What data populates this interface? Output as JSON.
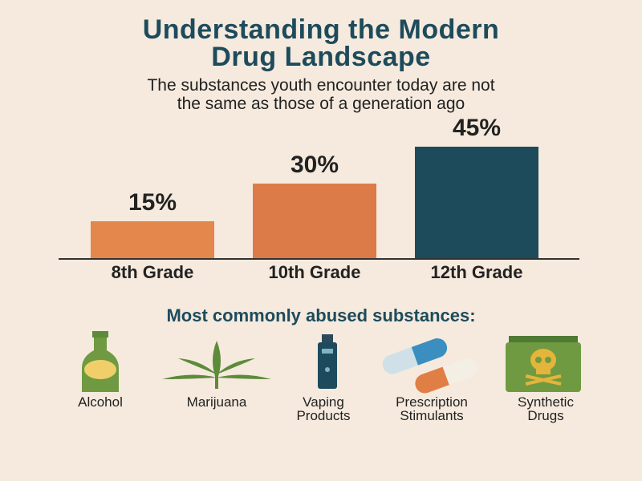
{
  "chart_data": {
    "type": "bar",
    "title": "Understanding the Modern Drug Landscape",
    "subtitle": "The substances youth encounter today are not the same as those of a generation ago",
    "categories": [
      "8th Grade",
      "10th Grade",
      "12th Grade"
    ],
    "values": [
      15,
      30,
      45
    ],
    "value_labels": [
      "15%",
      "30%",
      "45%"
    ],
    "colors": [
      "#e3874d",
      "#dc7b47",
      "#1d4b5c"
    ]
  },
  "substances": {
    "heading": "Most commonly abused substances:",
    "items": [
      "Alcohol",
      "Marijuana",
      "Vaping Products",
      "Prescription Stimulants",
      "Synthetic Drugs"
    ]
  }
}
